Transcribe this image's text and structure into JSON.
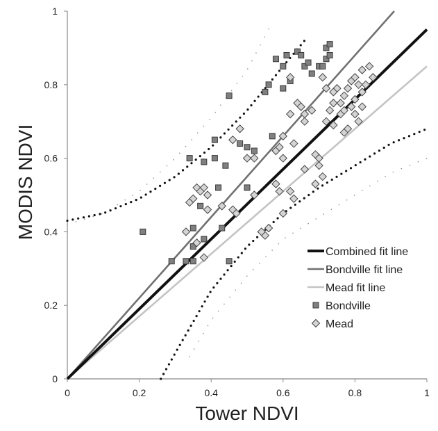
{
  "chart_data": {
    "type": "scatter",
    "title": "",
    "xlabel": "Tower NDVI",
    "ylabel": "MODIS NDVI",
    "xlim": [
      0,
      1
    ],
    "ylim": [
      0,
      1
    ],
    "xticks": [
      "0",
      "0.2",
      "0.4",
      "0.6",
      "0.8",
      "1"
    ],
    "yticks": [
      "0",
      "0.2",
      "0.4",
      "0.6",
      "0.8",
      "1"
    ],
    "grid": false,
    "legend_position": "bottom-right",
    "lines": [
      {
        "name": "Combined fit line",
        "slope": 0.95,
        "intercept": 0,
        "color": "#111111",
        "style": "solid-thick"
      },
      {
        "name": "Bondville fit line",
        "slope": 1.1,
        "intercept": 0,
        "color": "#707070",
        "style": "solid"
      },
      {
        "name": "Mead fit line",
        "slope": 0.85,
        "intercept": 0,
        "color": "#c4c4c4",
        "style": "solid"
      }
    ],
    "bands": [
      {
        "points": [
          [
            0,
            0.43
          ],
          [
            0.1,
            0.45
          ],
          [
            0.2,
            0.49
          ],
          [
            0.3,
            0.55
          ],
          [
            0.4,
            0.63
          ],
          [
            0.5,
            0.73
          ],
          [
            0.6,
            0.85
          ],
          [
            0.66,
            0.92
          ]
        ],
        "color": "#111111",
        "style": "dotted-heavy"
      },
      {
        "points": [
          [
            0.26,
            0
          ],
          [
            0.3,
            0.07
          ],
          [
            0.4,
            0.24
          ],
          [
            0.5,
            0.36
          ],
          [
            0.6,
            0.45
          ],
          [
            0.7,
            0.52
          ],
          [
            0.8,
            0.58
          ],
          [
            0.9,
            0.64
          ],
          [
            1,
            0.68
          ]
        ],
        "color": "#111111",
        "style": "dotted-heavy"
      },
      {
        "points": [
          [
            0,
            0.42
          ],
          [
            0.1,
            0.45
          ],
          [
            0.2,
            0.51
          ],
          [
            0.3,
            0.6
          ],
          [
            0.4,
            0.71
          ],
          [
            0.5,
            0.84
          ],
          [
            0.57,
            0.97
          ]
        ],
        "color": "#888888",
        "style": "dotted-light"
      },
      {
        "points": [
          [
            0.34,
            0.06
          ],
          [
            0.4,
            0.16
          ],
          [
            0.5,
            0.28
          ],
          [
            0.6,
            0.38
          ],
          [
            0.7,
            0.44
          ],
          [
            0.8,
            0.5
          ],
          [
            0.9,
            0.56
          ],
          [
            1,
            0.6
          ]
        ],
        "color": "#888888",
        "style": "dotted-light"
      }
    ],
    "series": [
      {
        "name": "Bondville",
        "marker": "square",
        "color": "#808080",
        "points": [
          [
            0.21,
            0.4
          ],
          [
            0.29,
            0.32
          ],
          [
            0.33,
            0.32
          ],
          [
            0.35,
            0.32
          ],
          [
            0.38,
            0.38
          ],
          [
            0.35,
            0.41
          ],
          [
            0.37,
            0.47
          ],
          [
            0.34,
            0.6
          ],
          [
            0.38,
            0.59
          ],
          [
            0.41,
            0.6
          ],
          [
            0.42,
            0.52
          ],
          [
            0.44,
            0.58
          ],
          [
            0.41,
            0.65
          ],
          [
            0.43,
            0.41
          ],
          [
            0.45,
            0.32
          ],
          [
            0.45,
            0.77
          ],
          [
            0.48,
            0.64
          ],
          [
            0.5,
            0.63
          ],
          [
            0.52,
            0.62
          ],
          [
            0.55,
            0.78
          ],
          [
            0.56,
            0.8
          ],
          [
            0.58,
            0.87
          ],
          [
            0.6,
            0.85
          ],
          [
            0.61,
            0.88
          ],
          [
            0.6,
            0.79
          ],
          [
            0.62,
            0.81
          ],
          [
            0.64,
            0.89
          ],
          [
            0.66,
            0.85
          ],
          [
            0.67,
            0.86
          ],
          [
            0.68,
            0.83
          ],
          [
            0.7,
            0.85
          ],
          [
            0.72,
            0.87
          ],
          [
            0.72,
            0.9
          ],
          [
            0.73,
            0.91
          ],
          [
            0.73,
            0.88
          ],
          [
            0.71,
            0.85
          ],
          [
            0.65,
            0.88
          ],
          [
            0.57,
            0.66
          ],
          [
            0.5,
            0.52
          ],
          [
            0.35,
            0.36
          ]
        ]
      },
      {
        "name": "Mead",
        "marker": "diamond",
        "color": "#d4d4d4",
        "points": [
          [
            0.33,
            0.4
          ],
          [
            0.34,
            0.48
          ],
          [
            0.35,
            0.49
          ],
          [
            0.36,
            0.52
          ],
          [
            0.37,
            0.51
          ],
          [
            0.38,
            0.52
          ],
          [
            0.39,
            0.5
          ],
          [
            0.39,
            0.46
          ],
          [
            0.36,
            0.37
          ],
          [
            0.38,
            0.33
          ],
          [
            0.43,
            0.47
          ],
          [
            0.46,
            0.46
          ],
          [
            0.47,
            0.45
          ],
          [
            0.46,
            0.65
          ],
          [
            0.48,
            0.68
          ],
          [
            0.5,
            0.6
          ],
          [
            0.52,
            0.6
          ],
          [
            0.52,
            0.5
          ],
          [
            0.55,
            0.39
          ],
          [
            0.58,
            0.53
          ],
          [
            0.59,
            0.51
          ],
          [
            0.6,
            0.45
          ],
          [
            0.58,
            0.62
          ],
          [
            0.59,
            0.63
          ],
          [
            0.6,
            0.66
          ],
          [
            0.6,
            0.6
          ],
          [
            0.62,
            0.72
          ],
          [
            0.63,
            0.64
          ],
          [
            0.64,
            0.75
          ],
          [
            0.65,
            0.74
          ],
          [
            0.66,
            0.72
          ],
          [
            0.66,
            0.7
          ],
          [
            0.68,
            0.73
          ],
          [
            0.69,
            0.61
          ],
          [
            0.7,
            0.58
          ],
          [
            0.71,
            0.55
          ],
          [
            0.72,
            0.7
          ],
          [
            0.73,
            0.73
          ],
          [
            0.74,
            0.69
          ],
          [
            0.74,
            0.75
          ],
          [
            0.75,
            0.79
          ],
          [
            0.76,
            0.72
          ],
          [
            0.77,
            0.67
          ],
          [
            0.77,
            0.77
          ],
          [
            0.78,
            0.79
          ],
          [
            0.78,
            0.68
          ],
          [
            0.79,
            0.74
          ],
          [
            0.8,
            0.76
          ],
          [
            0.8,
            0.72
          ],
          [
            0.81,
            0.8
          ],
          [
            0.82,
            0.84
          ],
          [
            0.83,
            0.8
          ],
          [
            0.84,
            0.85
          ],
          [
            0.82,
            0.74
          ],
          [
            0.81,
            0.7
          ],
          [
            0.76,
            0.75
          ],
          [
            0.74,
            0.78
          ],
          [
            0.72,
            0.79
          ],
          [
            0.7,
            0.6
          ],
          [
            0.69,
            0.53
          ],
          [
            0.66,
            0.57
          ],
          [
            0.63,
            0.49
          ],
          [
            0.62,
            0.51
          ],
          [
            0.56,
            0.41
          ],
          [
            0.54,
            0.4
          ],
          [
            0.71,
            0.82
          ],
          [
            0.79,
            0.81
          ],
          [
            0.82,
            0.78
          ],
          [
            0.85,
            0.82
          ],
          [
            0.77,
            0.73
          ],
          [
            0.8,
            0.82
          ],
          [
            0.62,
            0.82
          ]
        ]
      }
    ]
  }
}
